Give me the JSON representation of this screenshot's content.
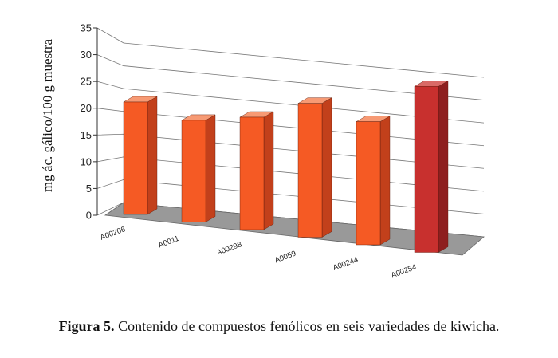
{
  "chart_data": {
    "type": "bar",
    "style": "3d",
    "categories": [
      "A00206",
      "A0011",
      "A00298",
      "A0059",
      "A00244",
      "A00254"
    ],
    "values": [
      21,
      19,
      21,
      25,
      23,
      31
    ],
    "ylabel": "mg ác. gálico/100 g muestra",
    "ylim": [
      0,
      35
    ],
    "yticks": [
      0,
      5,
      10,
      15,
      20,
      25,
      30,
      35
    ],
    "grid": true,
    "colors": {
      "bar_front": "#F55A24",
      "bar_side": "#C2401B",
      "bar_top": "#F79A74",
      "highlight_front": "#C8302E",
      "highlight_side": "#8E1F1F",
      "highlight_top": "#D96A66",
      "floor": "#999999"
    },
    "highlight_index": 5
  },
  "caption": {
    "prefix": "Figura 5.",
    "text": " Contenido de compuestos fenólicos en seis variedades de kiwicha."
  }
}
